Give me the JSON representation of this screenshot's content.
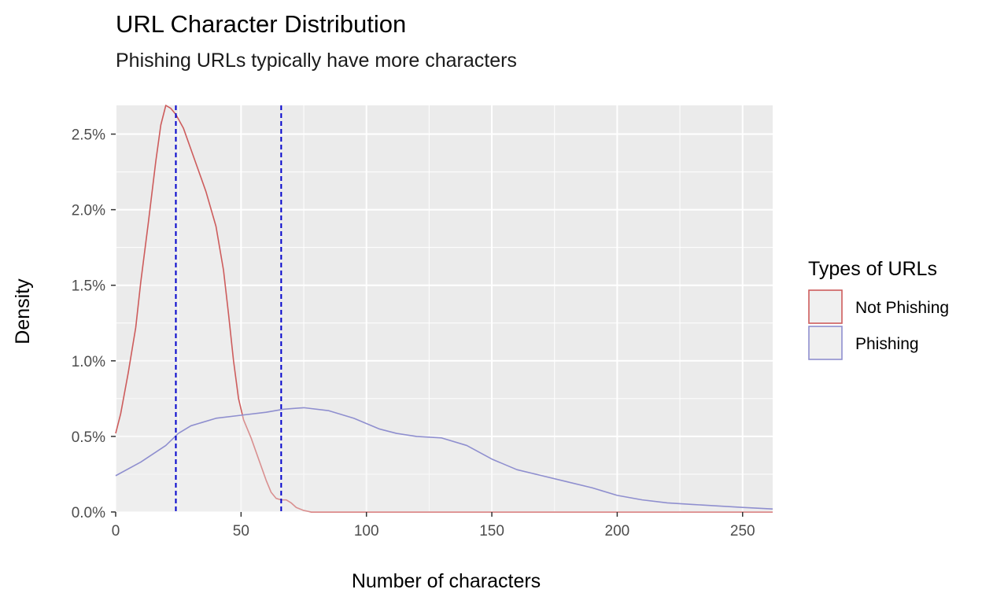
{
  "chart_data": {
    "type": "area",
    "title": "URL Character Distribution",
    "subtitle": "Phishing URLs typically have more characters",
    "xlabel": "Number of characters",
    "ylabel": "Density",
    "xlim": [
      0,
      262
    ],
    "ylim": [
      0,
      0.0269
    ],
    "x_ticks": [
      0,
      50,
      100,
      150,
      200,
      250
    ],
    "x_tick_labels": [
      "0",
      "50",
      "100",
      "150",
      "200",
      "250"
    ],
    "y_ticks": [
      0,
      0.005,
      0.01,
      0.015,
      0.02,
      0.025
    ],
    "y_tick_labels": [
      "0.0%",
      "0.5%",
      "1.0%",
      "1.5%",
      "2.0%",
      "2.5%"
    ],
    "grid": true,
    "legend": {
      "title": "Types of URLs",
      "position": "right"
    },
    "series": [
      {
        "name": "Not Phishing",
        "color": "#cd5c5c",
        "fill": "#f0f0f0",
        "x": [
          0,
          2,
          5,
          8,
          10,
          13,
          16,
          18,
          20,
          22,
          24,
          27,
          30,
          33,
          36,
          40,
          43,
          45,
          47,
          49,
          51,
          54,
          57,
          60,
          62,
          64,
          66,
          68,
          70,
          72,
          75,
          78,
          82,
          90,
          110,
          150,
          200,
          262
        ],
        "y": [
          0.0052,
          0.0065,
          0.0092,
          0.0122,
          0.0152,
          0.0191,
          0.0232,
          0.0256,
          0.0269,
          0.0267,
          0.0263,
          0.0254,
          0.024,
          0.0226,
          0.0212,
          0.0189,
          0.016,
          0.0131,
          0.01,
          0.0075,
          0.0061,
          0.0049,
          0.0035,
          0.0021,
          0.0013,
          0.0009,
          0.0008,
          0.0008,
          0.0006,
          0.0003,
          0.0001,
          0.0,
          0.0,
          0.0,
          0.0,
          0.0,
          0.0,
          0.0
        ]
      },
      {
        "name": "Phishing",
        "color": "#8f8fcf",
        "fill": "#f0f0f0",
        "x": [
          0,
          10,
          20,
          25,
          30,
          40,
          50,
          60,
          67,
          75,
          85,
          95,
          105,
          112,
          120,
          130,
          140,
          150,
          160,
          170,
          180,
          190,
          200,
          210,
          220,
          230,
          240,
          250,
          262
        ],
        "y": [
          0.0024,
          0.0033,
          0.0044,
          0.0052,
          0.0057,
          0.0062,
          0.0064,
          0.0066,
          0.0068,
          0.0069,
          0.0067,
          0.0062,
          0.0055,
          0.0052,
          0.005,
          0.0049,
          0.0044,
          0.0035,
          0.0028,
          0.0024,
          0.002,
          0.0016,
          0.0011,
          0.0008,
          0.0006,
          0.0005,
          0.0004,
          0.0003,
          0.0002
        ]
      }
    ],
    "reference_lines": [
      {
        "axis": "x",
        "value": 24,
        "color": "#0000cd",
        "style": "dashed"
      },
      {
        "axis": "x",
        "value": 66,
        "color": "#0000cd",
        "style": "dashed"
      }
    ],
    "panel_background": "#ebebeb",
    "grid_color": "#ffffff"
  }
}
